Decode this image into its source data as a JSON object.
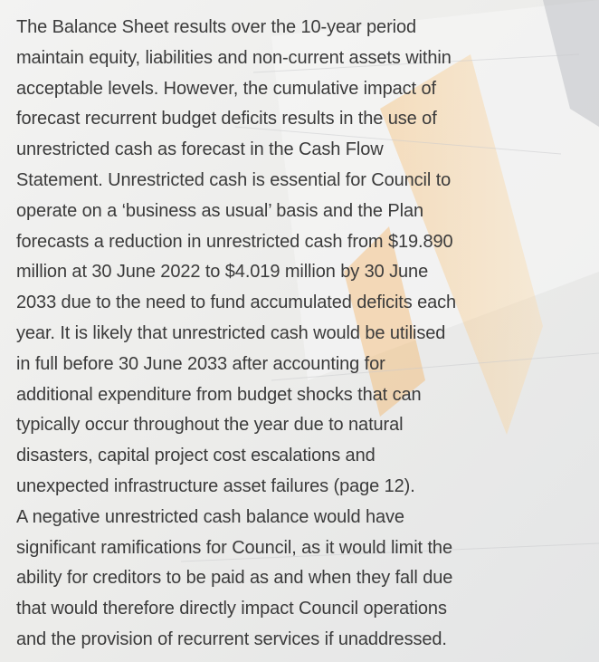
{
  "paragraphs": [
    {
      "lines": [
        "The Balance Sheet results over the 10-year period",
        "maintain equity, liabilities and non-current assets within",
        "acceptable levels. However, the cumulative impact of",
        "forecast recurrent budget deficits results in the use of",
        "unrestricted cash as forecast in the Cash Flow",
        "Statement. Unrestricted cash is essential for Council to",
        "operate on a ‘business as usual’ basis and the Plan",
        "forecasts a reduction in unrestricted cash from $19.890",
        "million at 30 June 2022 to $4.019 million by 30 June",
        "2033 due to the need to fund accumulated deficits each",
        "year. It is likely that unrestricted cash would be utilised",
        "in full before 30 June 2033 after accounting for",
        "additional expenditure from budget shocks that can",
        "typically occur throughout the year due to natural",
        "disasters, capital project cost escalations and",
        "unexpected infrastructure asset failures (page 12)."
      ]
    },
    {
      "lines": [
        "A negative unrestricted cash balance would have",
        "significant ramifications for Council, as it would limit the",
        "ability for creditors to be paid as and when they fall due",
        "that would therefore directly impact Council operations",
        "and the provision of recurrent services if unaddressed."
      ]
    }
  ]
}
